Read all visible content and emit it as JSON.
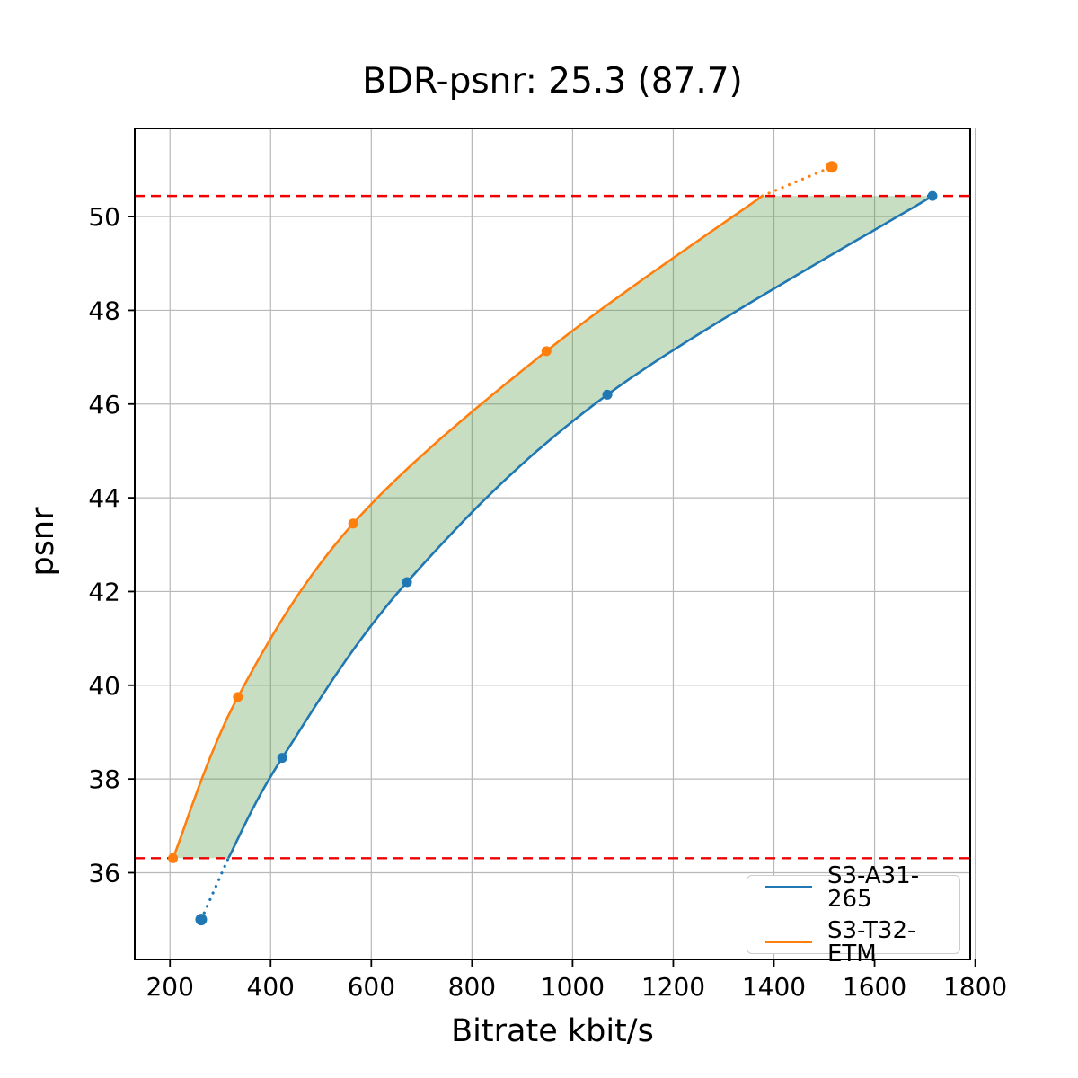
{
  "chart_data": {
    "type": "line",
    "title": "BDR-psnr: 25.3 (87.7)",
    "xlabel": "Bitrate kbit/s",
    "ylabel": "psnr",
    "xlim": [
      130,
      1790
    ],
    "ylim": [
      34.15,
      51.88
    ],
    "xticks": [
      200,
      400,
      600,
      800,
      1000,
      1200,
      1400,
      1600,
      1800
    ],
    "yticks": [
      36,
      38,
      40,
      42,
      44,
      46,
      48,
      50
    ],
    "grid": true,
    "grid_color": "#b8b8b8",
    "axis_color": "#000000",
    "legend": {
      "position": "lower right",
      "entries": [
        "S3-A31-265",
        "S3-T32-ETM"
      ]
    },
    "series": [
      {
        "name": "S3-A31-265",
        "color": "#1f77b4",
        "points": [
          [
            262,
            35.0
          ],
          [
            423,
            38.45
          ],
          [
            671,
            42.2
          ],
          [
            1069,
            46.2
          ],
          [
            1715,
            50.44
          ]
        ],
        "lower_crossing": 316
      },
      {
        "name": "S3-T32-ETM",
        "color": "#ff7f0e",
        "points": [
          [
            206,
            36.31
          ],
          [
            335,
            39.75
          ],
          [
            564,
            43.45
          ],
          [
            948,
            47.13
          ],
          [
            1515,
            51.06
          ]
        ],
        "upper_crossing": 1377
      }
    ],
    "hlines": {
      "values": [
        36.31,
        50.44
      ],
      "color": "#ee0000",
      "style": "dashed"
    },
    "fill_between": {
      "color": "#569a46",
      "opacity": 0.33,
      "lower": 36.31,
      "upper": 50.44
    }
  }
}
